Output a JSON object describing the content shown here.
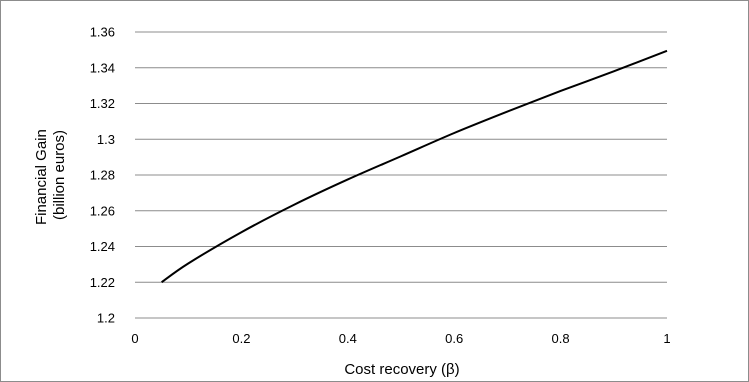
{
  "chart_data": {
    "type": "line",
    "title": "",
    "xlabel": "Cost recovery (β)",
    "ylabel_lines": [
      "Financial Gain",
      "(billion euros)"
    ],
    "xlim": [
      0,
      1
    ],
    "ylim": [
      1.2,
      1.36
    ],
    "x_ticks": [
      "0",
      "0.2",
      "0.4",
      "0.6",
      "0.8",
      "1"
    ],
    "y_ticks": [
      "1.2",
      "1.22",
      "1.24",
      "1.26",
      "1.28",
      "1.3",
      "1.32",
      "1.34",
      "1.36"
    ],
    "grid": "horizontal",
    "legend": "none",
    "series": [
      {
        "color": "#000000",
        "x": [
          0.05,
          0.1,
          0.2,
          0.3,
          0.4,
          0.5,
          0.6,
          0.7,
          0.8,
          0.9,
          1.0
        ],
        "y": [
          1.22,
          1.2305,
          1.248,
          1.2635,
          1.2775,
          1.2905,
          1.3035,
          1.3155,
          1.327,
          1.338,
          1.3495
        ]
      }
    ]
  }
}
